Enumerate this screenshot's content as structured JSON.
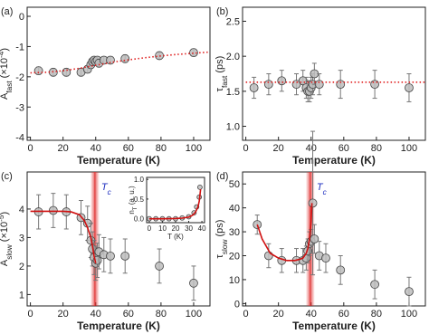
{
  "chart_data": [
    {
      "type": "scatter",
      "panel_label": "(a)",
      "xlabel": "Temperature (K)",
      "ylabel": [
        {
          "text": "A"
        },
        {
          "text": "fast",
          "style": "sub"
        },
        {
          "text": " (×10"
        },
        {
          "text": "-4",
          "style": "sup"
        },
        {
          "text": ")"
        }
      ],
      "xlim": [
        -2,
        110
      ],
      "ylim": [
        -4.1,
        0.3
      ],
      "xticks": [
        0,
        20,
        40,
        60,
        80,
        100
      ],
      "yticks": [
        0,
        -1,
        -2,
        -3,
        -4
      ],
      "x": [
        5,
        14,
        22,
        31,
        35,
        37,
        38,
        39,
        40,
        41,
        42,
        45,
        49,
        58,
        79,
        100
      ],
      "values": [
        -1.8,
        -1.85,
        -1.85,
        -1.85,
        -1.75,
        -1.6,
        -1.5,
        -1.45,
        -1.5,
        -1.45,
        -1.55,
        -1.45,
        -1.45,
        -1.4,
        -1.3,
        -1.2
      ],
      "errors": [
        0.12,
        0.12,
        0.12,
        0.12,
        0.12,
        0.12,
        0.12,
        0.12,
        0.12,
        0.12,
        0.12,
        0.12,
        0.12,
        0.12,
        0.12,
        0.12
      ],
      "color": "#bdbdbd",
      "fit": {
        "x": [
          0,
          10,
          20,
          30,
          40,
          50,
          60,
          70,
          80,
          90,
          100,
          110
        ],
        "values": [
          -1.87,
          -1.85,
          -1.8,
          -1.72,
          -1.62,
          -1.52,
          -1.44,
          -1.37,
          -1.31,
          -1.26,
          -1.22,
          -1.18
        ],
        "color": "#e02020",
        "style": "dotted"
      }
    },
    {
      "type": "scatter",
      "panel_label": "(b)",
      "xlabel": "Temperature (K)",
      "ylabel": [
        {
          "text": "τ"
        },
        {
          "text": "fast",
          "style": "sub"
        },
        {
          "text": " (ps)"
        }
      ],
      "xlim": [
        -2,
        110
      ],
      "ylim": [
        0.8,
        2.7
      ],
      "xticks": [
        0,
        20,
        40,
        60,
        80,
        100
      ],
      "yticks": [
        {
          "value": 1,
          "label": "1.0"
        },
        1.5,
        {
          "value": 2,
          "label": "2.0"
        },
        2.5
      ],
      "x": [
        5,
        14,
        22,
        31,
        35,
        37,
        38,
        39,
        40,
        41,
        42,
        45,
        58,
        79,
        100
      ],
      "values": [
        1.55,
        1.6,
        1.65,
        1.6,
        1.65,
        1.55,
        1.5,
        1.5,
        1.55,
        1.6,
        1.75,
        1.6,
        1.6,
        1.6,
        1.55
      ],
      "errors": [
        0.15,
        0.15,
        0.15,
        0.15,
        0.15,
        0.15,
        0.15,
        0.15,
        0.15,
        0.15,
        0.15,
        0.15,
        0.2,
        0.2,
        0.2
      ],
      "color": "#bdbdbd",
      "fit": {
        "x": [
          0,
          110
        ],
        "values": [
          1.63,
          1.63
        ],
        "color": "#e02020",
        "style": "dotted"
      }
    },
    {
      "type": "scatter",
      "panel_label": "(c)",
      "xlabel": "Temperature (K)",
      "ylabel": [
        {
          "text": "A"
        },
        {
          "text": "slow",
          "style": "sub"
        },
        {
          "text": " (×10"
        },
        {
          "text": "-5",
          "style": "sup"
        },
        {
          "text": ")"
        }
      ],
      "xlim": [
        -2,
        110
      ],
      "ylim": [
        0.6,
        5.3
      ],
      "xticks": [
        0,
        20,
        40,
        60,
        80,
        100
      ],
      "yticks": [
        1,
        2,
        3,
        4
      ],
      "x": [
        5,
        14,
        22,
        31,
        35,
        37,
        38,
        39,
        40,
        41,
        42,
        45,
        49,
        58,
        79,
        100
      ],
      "values": [
        3.9,
        3.95,
        3.9,
        3.7,
        3.5,
        2.9,
        2.6,
        2.3,
        2.1,
        2.2,
        2.5,
        2.4,
        2.35,
        2.35,
        2.0,
        1.4
      ],
      "errors": [
        0.6,
        0.6,
        0.6,
        0.6,
        0.6,
        0.6,
        0.6,
        0.6,
        0.6,
        0.6,
        0.6,
        0.6,
        0.6,
        0.6,
        0.6,
        0.6
      ],
      "color": "#bdbdbd",
      "fit": {
        "x": [
          0,
          5,
          10,
          15,
          20,
          25,
          30,
          33,
          35,
          37,
          38,
          39,
          40
        ],
        "values": [
          3.92,
          3.92,
          3.92,
          3.92,
          3.92,
          3.9,
          3.8,
          3.6,
          3.35,
          3.0,
          2.7,
          2.35,
          2.1
        ],
        "color": "#d01010",
        "style": "solid"
      },
      "tc": 39.5,
      "tc_label": [
        {
          "text": "T"
        },
        {
          "text": "c",
          "style": "sub"
        }
      ],
      "tc_color": "#e03030"
    },
    {
      "type": "scatter",
      "panel_label": "(d)",
      "xlabel": "Temperature (K)",
      "ylabel": [
        {
          "text": "τ"
        },
        {
          "text": "slow",
          "style": "sub"
        },
        {
          "text": " (ps)"
        }
      ],
      "xlim": [
        -2,
        110
      ],
      "ylim": [
        -1,
        55
      ],
      "xticks": [
        0,
        20,
        40,
        60,
        80,
        100
      ],
      "yticks": [
        0,
        10,
        20,
        30,
        40,
        50
      ],
      "x": [
        7,
        14,
        22,
        31,
        35,
        37,
        38,
        39,
        40,
        41,
        42,
        45,
        49,
        58,
        79,
        100
      ],
      "values": [
        33,
        20,
        18,
        18,
        18,
        19,
        22,
        25,
        26,
        42,
        27,
        20,
        19,
        14,
        8,
        5
      ],
      "errors": [
        4,
        5,
        5,
        5,
        5,
        5,
        5,
        5,
        5,
        30,
        6,
        6,
        6,
        6,
        6,
        6
      ],
      "color": "#bdbdbd",
      "fit": {
        "x": [
          7,
          10,
          15,
          20,
          25,
          30,
          33,
          35,
          37,
          38,
          39,
          40,
          40.5
        ],
        "values": [
          33,
          27,
          21,
          19,
          18,
          18,
          18.5,
          19,
          21,
          23,
          27,
          34,
          42
        ],
        "color": "#d01010",
        "style": "solid"
      },
      "tc": 39.5,
      "tc_label": [
        {
          "text": "T"
        },
        {
          "text": "c",
          "style": "sub"
        }
      ],
      "tc_color": "#e03030"
    },
    {
      "type": "scatter",
      "xlabel": "T (K)",
      "ylabel": [
        {
          "text": "n"
        },
        {
          "text": "T",
          "style": "sub"
        },
        {
          "text": " (a. u.)"
        }
      ],
      "xlim": [
        -2,
        42
      ],
      "ylim": [
        -0.1,
        1.05
      ],
      "xticks": [
        0,
        10,
        20,
        30,
        40
      ],
      "yticks": [
        {
          "value": 0,
          "label": "0.0"
        },
        0.5,
        {
          "value": 1,
          "label": "1.0"
        }
      ],
      "x": [
        0,
        5,
        10,
        15,
        20,
        25,
        30,
        34,
        36,
        38,
        38.5
      ],
      "values": [
        0,
        0,
        0,
        0,
        0,
        0.02,
        0.05,
        0.15,
        0.3,
        0.55,
        0.8
      ],
      "color": "#bdbdbd",
      "fit": {
        "x": [
          0,
          10,
          20,
          25,
          30,
          33,
          35,
          37,
          38,
          39
        ],
        "values": [
          0,
          0,
          0.005,
          0.015,
          0.04,
          0.09,
          0.16,
          0.3,
          0.45,
          0.75
        ],
        "color": "#d01010",
        "style": "solid"
      }
    }
  ]
}
